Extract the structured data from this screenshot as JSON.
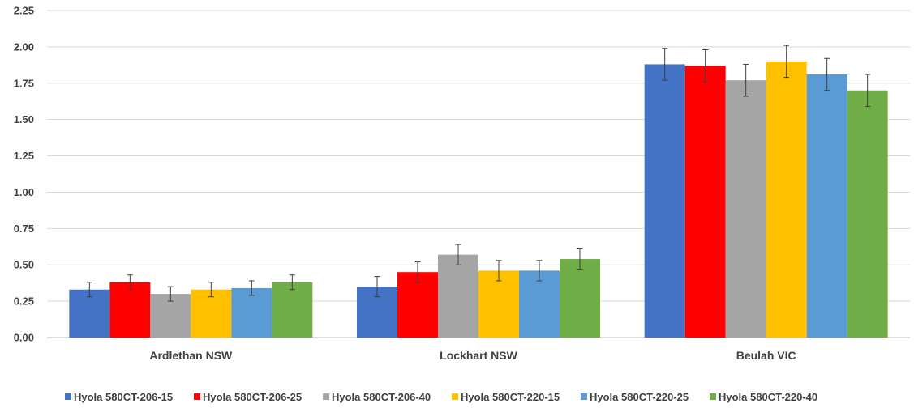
{
  "chart_data": {
    "type": "bar",
    "categories": [
      "Ardlethan NSW",
      "Lockhart NSW",
      "Beulah VIC"
    ],
    "series": [
      {
        "name": "Hyola 580CT-206-15",
        "color": "#4472C4",
        "values": [
          0.33,
          0.35,
          1.88
        ],
        "errors": [
          0.05,
          0.07,
          0.11
        ]
      },
      {
        "name": "Hyola 580CT-206-25",
        "color": "#FF0000",
        "values": [
          0.38,
          0.45,
          1.87
        ],
        "errors": [
          0.05,
          0.07,
          0.11
        ]
      },
      {
        "name": "Hyola 580CT-206-40",
        "color": "#A5A5A5",
        "values": [
          0.3,
          0.57,
          1.77
        ],
        "errors": [
          0.05,
          0.07,
          0.11
        ]
      },
      {
        "name": "Hyola 580CT-220-15",
        "color": "#FFC000",
        "values": [
          0.33,
          0.46,
          1.9
        ],
        "errors": [
          0.05,
          0.07,
          0.11
        ]
      },
      {
        "name": "Hyola 580CT-220-25",
        "color": "#5B9BD5",
        "values": [
          0.34,
          0.46,
          1.81
        ],
        "errors": [
          0.05,
          0.07,
          0.11
        ]
      },
      {
        "name": "Hyola 580CT-220-40",
        "color": "#70AD47",
        "values": [
          0.38,
          0.54,
          1.7
        ],
        "errors": [
          0.05,
          0.07,
          0.11
        ]
      }
    ],
    "yticks": [
      "0.00",
      "0.25",
      "0.50",
      "0.75",
      "1.00",
      "1.25",
      "1.50",
      "1.75",
      "2.00",
      "2.25"
    ],
    "ylim": [
      0,
      2.25
    ],
    "grid": true,
    "legend_position": "bottom"
  }
}
